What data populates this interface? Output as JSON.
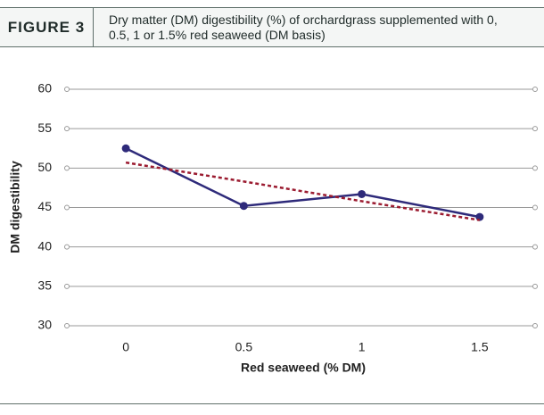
{
  "chart_data": {
    "type": "line",
    "figure_label": "FIGURE 3",
    "title": "Dry matter (DM) digestibility (%) of orchardgrass supplemented with 0, 0.5, 1 or 1.5% red seaweed (DM basis)",
    "xlabel": "Red seaweed (% DM)",
    "ylabel": "DM digestibility",
    "categories": [
      "0",
      "0.5",
      "1",
      "1.5"
    ],
    "series": [
      {
        "color": "#2e2a7a",
        "style": "solid",
        "markers": true,
        "values": [
          52.5,
          45.2,
          46.7,
          43.8
        ]
      },
      {
        "color": "#9b1b30",
        "style": "dashed",
        "markers": false,
        "values": [
          50.7,
          48.3,
          45.8,
          43.4
        ]
      }
    ],
    "ylim": [
      30,
      60
    ],
    "yticks": [
      30,
      35,
      40,
      45,
      50,
      55,
      60
    ],
    "grid": true
  }
}
